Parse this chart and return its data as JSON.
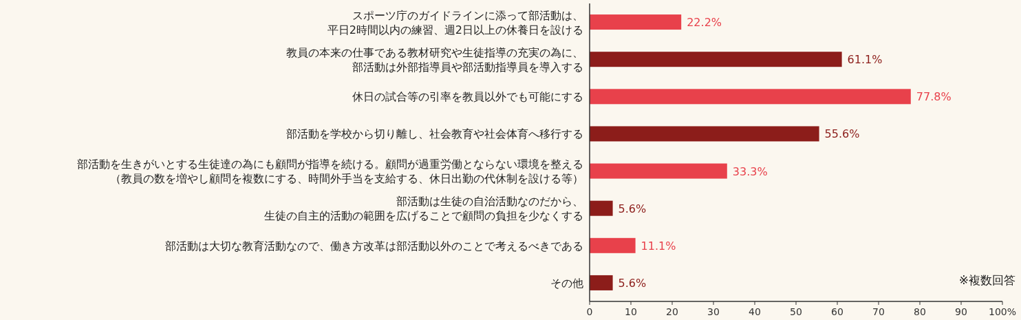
{
  "chart_data": {
    "type": "bar",
    "orientation": "horizontal",
    "categories": [
      "スポーツ庁のガイドラインに添って部活動は、平日2時間以内の練習、週2日以上の休養日を設ける",
      "教員の本来の仕事である教材研究や生徒指導の充実の為に、部活動は外部指導員や部活動指導員を導入する",
      "休日の試合等の引率を教員以外でも可能にする",
      "部活動を学校から切り離し、社会教育や社会体育へ移行する",
      "部活動を生きがいとする生徒達の為にも顧問が指導を続ける。顧問が過重労働とならない環境を整える（教員の数を増やし顧問を複数にする、時間外手当を支給する、休日出勤の代休制を設ける等）",
      "部活動は生徒の自治活動なのだから、生徒の自主的活動の範囲を広げることで顧問の負担を少なくする",
      "部活動は大切な教育活動なので、働き方改革は部活動以外のことで考えるべきである",
      "その他"
    ],
    "values": [
      22.2,
      61.1,
      77.8,
      55.6,
      33.3,
      5.6,
      11.1,
      5.6
    ],
    "value_labels": [
      "22.2%",
      "61.1%",
      "77.8%",
      "55.6%",
      "33.3%",
      "5.6%",
      "11.1%",
      "5.6%"
    ],
    "colors": [
      "#e8414b",
      "#8c1d1a",
      "#e8414b",
      "#8c1d1a",
      "#e8414b",
      "#8c1d1a",
      "#e8414b",
      "#8c1d1a"
    ],
    "xlim": [
      0,
      100
    ],
    "xticks": [
      0,
      10,
      20,
      30,
      40,
      50,
      60,
      70,
      80,
      90,
      {
        "value": 100,
        "label": "100%"
      }
    ],
    "annotations": [
      "※複数回答"
    ],
    "grid": false
  }
}
